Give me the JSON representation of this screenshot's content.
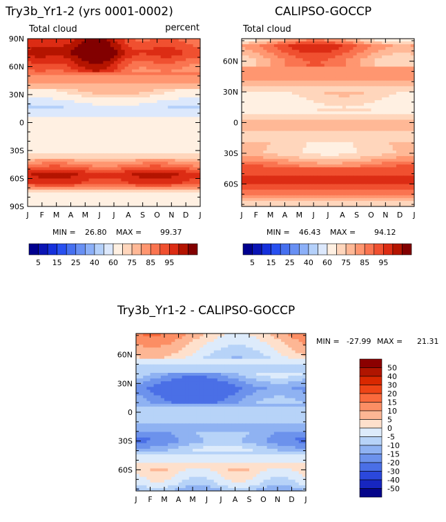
{
  "chart_data": [
    {
      "type": "heatmap",
      "title": "Try3b_Yr1-2 (yrs 0001-0002)",
      "subtitle_left": "Total cloud",
      "subtitle_right": "percent",
      "x_ticks": [
        "J",
        "F",
        "M",
        "A",
        "M",
        "J",
        "J",
        "A",
        "S",
        "O",
        "N",
        "D",
        "J"
      ],
      "y_ticks": [
        "90N",
        "60N",
        "30N",
        "0",
        "30S",
        "60S",
        "90S"
      ],
      "ylim": [
        -90,
        90
      ],
      "stats": {
        "min_label": "MIN =",
        "min": "26.80",
        "max_label": "MAX =",
        "max": "99.37"
      },
      "profile_lat": [
        90,
        75,
        60,
        45,
        30,
        15,
        0,
        -15,
        -30,
        -45,
        -55,
        -65,
        -75,
        -90
      ],
      "profile_val": [
        85,
        92,
        82,
        72,
        60,
        40,
        60,
        52,
        55,
        75,
        90,
        85,
        60,
        55
      ]
    },
    {
      "type": "heatmap",
      "title": "CALIPSO-GOCCP",
      "subtitle_left": "Total cloud",
      "x_ticks": [
        "J",
        "F",
        "M",
        "A",
        "M",
        "J",
        "J",
        "A",
        "S",
        "O",
        "N",
        "D",
        "J"
      ],
      "y_ticks": [
        "60N",
        "30N",
        "0",
        "30S",
        "60S"
      ],
      "ylim": [
        -82,
        82
      ],
      "stats": {
        "min_label": "MIN =",
        "min": "46.43",
        "max_label": "MAX =",
        "max": "94.12"
      },
      "profile_lat": [
        82,
        75,
        60,
        45,
        30,
        15,
        0,
        -15,
        -30,
        -45,
        -55,
        -65,
        -75,
        -82
      ],
      "profile_val": [
        62,
        80,
        70,
        72,
        62,
        55,
        68,
        63,
        62,
        80,
        88,
        83,
        66,
        60
      ]
    },
    {
      "type": "heatmap",
      "title": "Try3b_Yr1-2 - CALIPSO-GOCCP",
      "x_ticks": [
        "J",
        "F",
        "M",
        "A",
        "M",
        "J",
        "J",
        "A",
        "S",
        "O",
        "N",
        "D",
        "J"
      ],
      "y_ticks": [
        "60N",
        "30N",
        "0",
        "30S",
        "60S"
      ],
      "ylim": [
        -82,
        82
      ],
      "stats": {
        "min_label": "MIN =",
        "min": "-27.99",
        "max_label": "MAX =",
        "max": "21.31"
      },
      "profile_lat": [
        82,
        70,
        55,
        40,
        25,
        10,
        0,
        -15,
        -30,
        -45,
        -60,
        -75,
        -82
      ],
      "profile_val": [
        8,
        3,
        -3,
        -10,
        -22,
        -15,
        -5,
        -12,
        -15,
        -3,
        2,
        -5,
        -12
      ]
    }
  ],
  "colorbar_abs": {
    "labels": [
      "5",
      "15",
      "25",
      "40",
      "60",
      "75",
      "85",
      "95"
    ],
    "colors": [
      "#00008f",
      "#0a14b4",
      "#1530dc",
      "#2850f0",
      "#4670f0",
      "#6890f4",
      "#8cb0f8",
      "#b4d0fa",
      "#dce8fc",
      "#fff0e2",
      "#ffd6bc",
      "#ffb896",
      "#ff9670",
      "#fa7450",
      "#f05030",
      "#dc2c14",
      "#b41400",
      "#820000"
    ]
  },
  "colorbar_diff": {
    "labels": [
      "50",
      "40",
      "30",
      "20",
      "15",
      "10",
      "5",
      "0",
      "-5",
      "-10",
      "-15",
      "-20",
      "-30",
      "-40",
      "-50"
    ],
    "colors": [
      "#8b0000",
      "#b01500",
      "#d92800",
      "#ee4416",
      "#fa6a3c",
      "#fc8e64",
      "#fdb694",
      "#fee0cc",
      "#ddebfb",
      "#b7d3f8",
      "#8fb2f2",
      "#6c92ec",
      "#4a6fe6",
      "#2b48dc",
      "#1726c0",
      "#05058a"
    ]
  }
}
